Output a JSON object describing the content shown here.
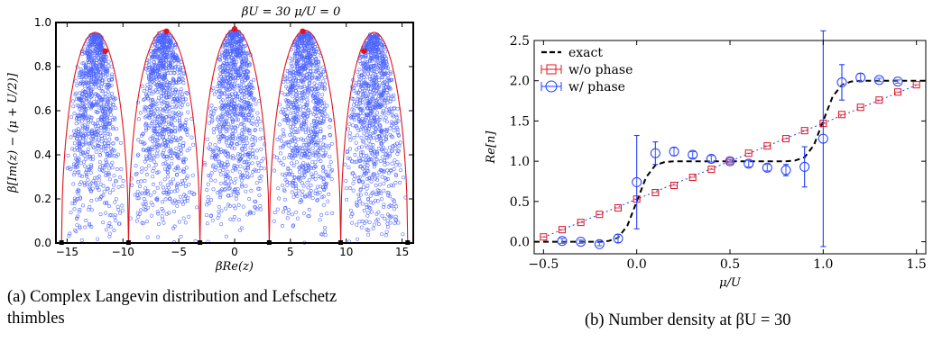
{
  "captions": {
    "a_line1": "(a) Complex Langevin distribution and Lefschetz",
    "a_line2": "thimbles",
    "b": "(b) Number density at βU = 30"
  },
  "colors": {
    "points": "#1f3cff",
    "thimble": "#e0141e",
    "exact": "#000000",
    "wo_phase": "#e0141e",
    "w_phase": "#1f3cff"
  },
  "chart_data": [
    {
      "id": "a",
      "type": "scatter",
      "title": "βU = 30   μ/U = 0",
      "xlabel": "βRe(z)",
      "ylabel": "β[Im(z) − (μ + U/2)]",
      "xlim": [
        -16,
        16
      ],
      "ylim": [
        0,
        1.0
      ],
      "xticks": [
        -15,
        -10,
        -5,
        0,
        5,
        10,
        15
      ],
      "yticks": [
        0.0,
        0.2,
        0.4,
        0.6,
        0.8,
        1.0
      ],
      "thimble_arcs": [
        {
          "left": -15.5,
          "right": -9.5,
          "peak": 0.955
        },
        {
          "left": -9.5,
          "right": -3.1,
          "peak": 0.965
        },
        {
          "left": -3.1,
          "right": 3.1,
          "peak": 0.97
        },
        {
          "left": 3.1,
          "right": 9.5,
          "peak": 0.965
        },
        {
          "left": 9.5,
          "right": 15.5,
          "peak": 0.955
        }
      ],
      "critical_points": [
        {
          "x": -11.6,
          "y": 0.87
        },
        {
          "x": -6.1,
          "y": 0.96
        },
        {
          "x": 0.0,
          "y": 0.97
        },
        {
          "x": 6.1,
          "y": 0.96
        },
        {
          "x": 11.6,
          "y": 0.87
        }
      ]
    },
    {
      "id": "b",
      "type": "line",
      "xlabel": "μ/U",
      "ylabel": "Re[n]",
      "xlim": [
        -0.55,
        1.55
      ],
      "ylim": [
        -0.15,
        2.5
      ],
      "xticks": [
        -0.5,
        0.0,
        0.5,
        1.0,
        1.5
      ],
      "yticks": [
        0.0,
        0.5,
        1.0,
        1.5,
        2.0,
        2.5
      ],
      "legend": {
        "position": "top-left",
        "entries": [
          "exact",
          "w/o phase",
          "w/   phase"
        ]
      },
      "exact_curve": {
        "name": "exact",
        "x": [
          -0.55,
          -0.5,
          -0.4,
          -0.3,
          -0.2,
          -0.15,
          -0.1,
          -0.05,
          0.0,
          0.05,
          0.1,
          0.15,
          0.2,
          0.3,
          0.4,
          0.5,
          0.6,
          0.7,
          0.8,
          0.85,
          0.9,
          0.95,
          1.0,
          1.05,
          1.1,
          1.15,
          1.2,
          1.3,
          1.4,
          1.5,
          1.55
        ],
        "y": [
          0.0,
          0.0,
          0.0,
          0.0,
          0.0,
          0.01,
          0.05,
          0.2,
          0.5,
          0.8,
          0.95,
          0.99,
          1.0,
          1.0,
          1.0,
          1.0,
          1.0,
          1.0,
          1.0,
          1.01,
          1.05,
          1.2,
          1.5,
          1.8,
          1.95,
          1.99,
          2.0,
          2.0,
          2.0,
          2.0,
          2.0
        ]
      },
      "series": [
        {
          "name": "w/o phase",
          "x": [
            -0.5,
            -0.4,
            -0.3,
            -0.2,
            -0.1,
            0.0,
            0.1,
            0.2,
            0.3,
            0.4,
            0.5,
            0.6,
            0.7,
            0.8,
            0.9,
            1.0,
            1.1,
            1.2,
            1.3,
            1.4,
            1.5
          ],
          "y": [
            0.06,
            0.15,
            0.24,
            0.34,
            0.42,
            0.53,
            0.61,
            0.7,
            0.8,
            0.9,
            1.0,
            1.1,
            1.19,
            1.28,
            1.38,
            1.47,
            1.58,
            1.67,
            1.76,
            1.86,
            1.95
          ],
          "yerr": [
            0.02,
            0.02,
            0.02,
            0.02,
            0.02,
            0.02,
            0.02,
            0.02,
            0.02,
            0.02,
            0.02,
            0.02,
            0.02,
            0.02,
            0.02,
            0.02,
            0.02,
            0.02,
            0.02,
            0.02,
            0.02
          ]
        },
        {
          "name": "w/   phase",
          "x": [
            -0.4,
            -0.3,
            -0.2,
            -0.1,
            0.0,
            0.1,
            0.2,
            0.3,
            0.4,
            0.5,
            0.6,
            0.7,
            0.8,
            0.9,
            1.0,
            1.1,
            1.2,
            1.3,
            1.4
          ],
          "y": [
            0.01,
            0.0,
            -0.03,
            0.04,
            0.74,
            1.1,
            1.12,
            1.08,
            1.03,
            1.0,
            0.97,
            0.92,
            0.89,
            0.93,
            1.28,
            1.98,
            2.04,
            2.01,
            1.99
          ],
          "yerr": [
            0.03,
            0.02,
            0.02,
            0.05,
            0.58,
            0.14,
            0.05,
            0.04,
            0.04,
            0.02,
            0.04,
            0.04,
            0.07,
            0.25,
            1.34,
            0.22,
            0.05,
            0.02,
            0.02
          ]
        }
      ],
      "fit_line": {
        "slope": 0.945,
        "intercept": 0.528
      }
    }
  ]
}
